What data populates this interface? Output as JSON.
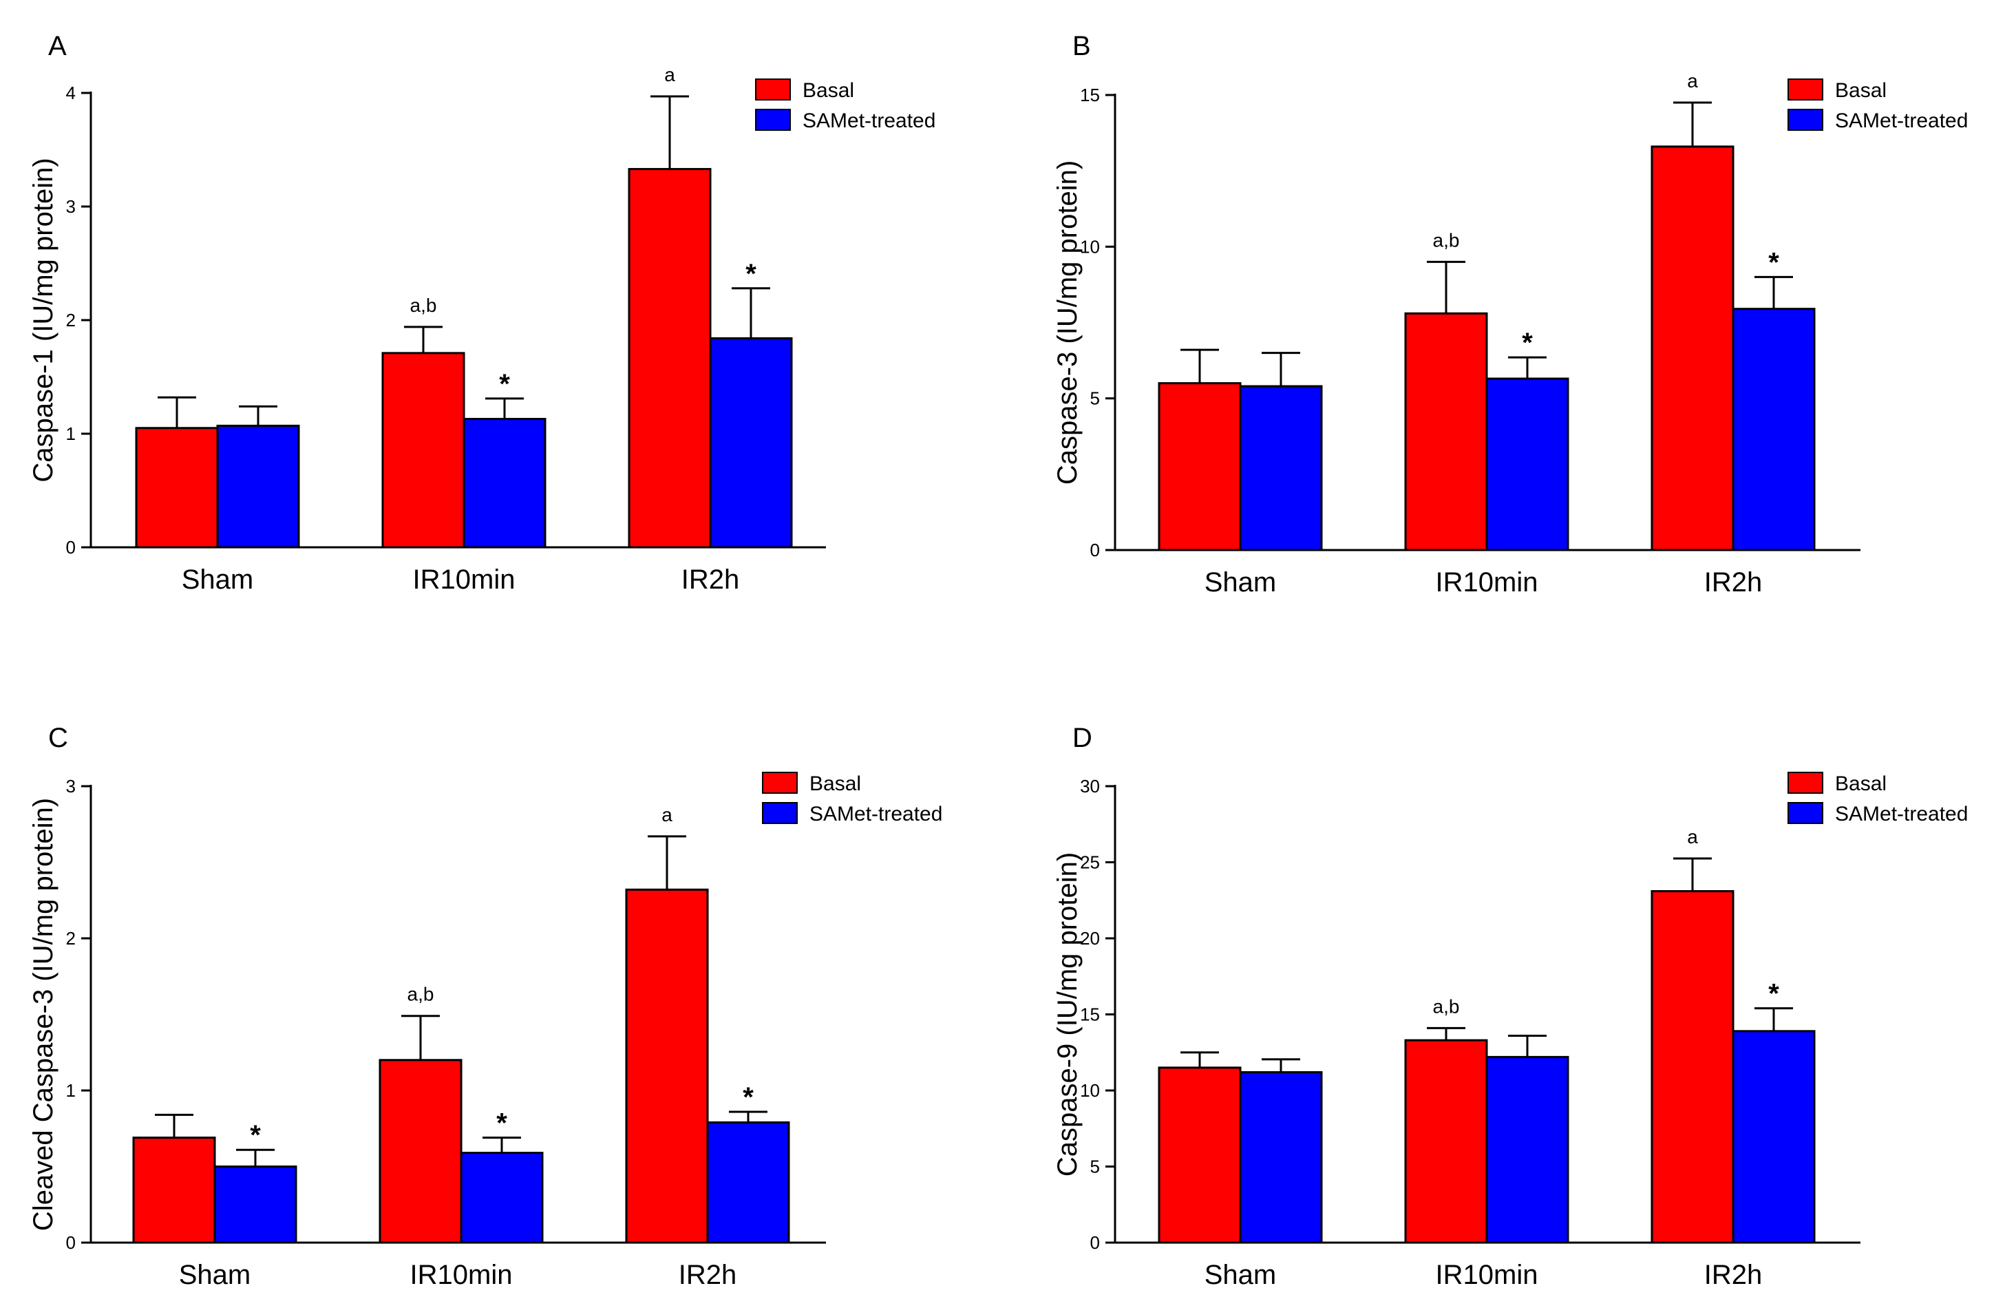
{
  "chart_data": [
    {
      "type": "bar",
      "panel": "A",
      "title": "",
      "xlabel": "",
      "ylabel": "Caspase-1 (IU/mg protein)",
      "ylim": [
        0,
        4
      ],
      "yticks": [
        "0",
        "1",
        "2",
        "3",
        "4"
      ],
      "categories": [
        "Sham",
        "IR10min",
        "IR2h"
      ],
      "legend_position": "top-right",
      "series": [
        {
          "name": "Basal",
          "color": "#ff0000",
          "values": [
            1.05,
            1.71,
            3.33
          ],
          "errors": [
            0.27,
            0.23,
            0.64
          ],
          "annotations": [
            "",
            "a,b",
            "a"
          ]
        },
        {
          "name": "SAMet-treated",
          "color": "#0000ff",
          "values": [
            1.07,
            1.13,
            1.84
          ],
          "errors": [
            0.17,
            0.18,
            0.44
          ],
          "annotations": [
            "",
            "*",
            "*"
          ]
        }
      ]
    },
    {
      "type": "bar",
      "panel": "B",
      "title": "",
      "xlabel": "",
      "ylabel": "Caspase-3 (IU/mg protein)",
      "ylim": [
        0,
        15
      ],
      "yticks": [
        "0",
        "5",
        "10",
        "15"
      ],
      "categories": [
        "Sham",
        "IR10min",
        "IR2h"
      ],
      "legend_position": "top-right",
      "series": [
        {
          "name": "Basal",
          "color": "#ff0000",
          "values": [
            5.5,
            7.8,
            13.3
          ],
          "errors": [
            1.1,
            1.7,
            1.45
          ],
          "annotations": [
            "",
            "a,b",
            "a"
          ]
        },
        {
          "name": "SAMet-treated",
          "color": "#0000ff",
          "values": [
            5.4,
            5.65,
            7.95
          ],
          "errors": [
            1.1,
            0.7,
            1.05
          ],
          "annotations": [
            "",
            "*",
            "*"
          ]
        }
      ]
    },
    {
      "type": "bar",
      "panel": "C",
      "title": "",
      "xlabel": "",
      "ylabel": "Cleaved Caspase-3 (IU/mg protein)",
      "ylim": [
        0,
        3
      ],
      "yticks": [
        "0",
        "1",
        "2",
        "3"
      ],
      "categories": [
        "Sham",
        "IR10min",
        "IR2h"
      ],
      "legend_position": "top-right",
      "series": [
        {
          "name": "Basal",
          "color": "#ff0000",
          "values": [
            0.69,
            1.2,
            2.32
          ],
          "errors": [
            0.15,
            0.29,
            0.35
          ],
          "annotations": [
            "",
            "a,b",
            "a"
          ]
        },
        {
          "name": "SAMet-treated",
          "color": "#0000ff",
          "values": [
            0.5,
            0.59,
            0.79
          ],
          "errors": [
            0.11,
            0.1,
            0.07
          ],
          "annotations": [
            "*",
            "*",
            "*"
          ]
        }
      ]
    },
    {
      "type": "bar",
      "panel": "D",
      "title": "",
      "xlabel": "",
      "ylabel": "Caspase-9 (IU/mg protein)",
      "ylim": [
        0,
        30
      ],
      "yticks": [
        "0",
        "5",
        "10",
        "15",
        "20",
        "25",
        "30"
      ],
      "categories": [
        "Sham",
        "IR10min",
        "IR2h"
      ],
      "legend_position": "top-right",
      "series": [
        {
          "name": "Basal",
          "color": "#ff0000",
          "values": [
            11.5,
            13.3,
            23.1
          ],
          "errors": [
            1.0,
            0.8,
            2.15
          ],
          "annotations": [
            "",
            "a,b",
            "a"
          ]
        },
        {
          "name": "SAMet-treated",
          "color": "#0000ff",
          "values": [
            11.2,
            12.2,
            13.9
          ],
          "errors": [
            0.85,
            1.4,
            1.5
          ],
          "annotations": [
            "",
            "",
            "*"
          ]
        }
      ]
    }
  ]
}
